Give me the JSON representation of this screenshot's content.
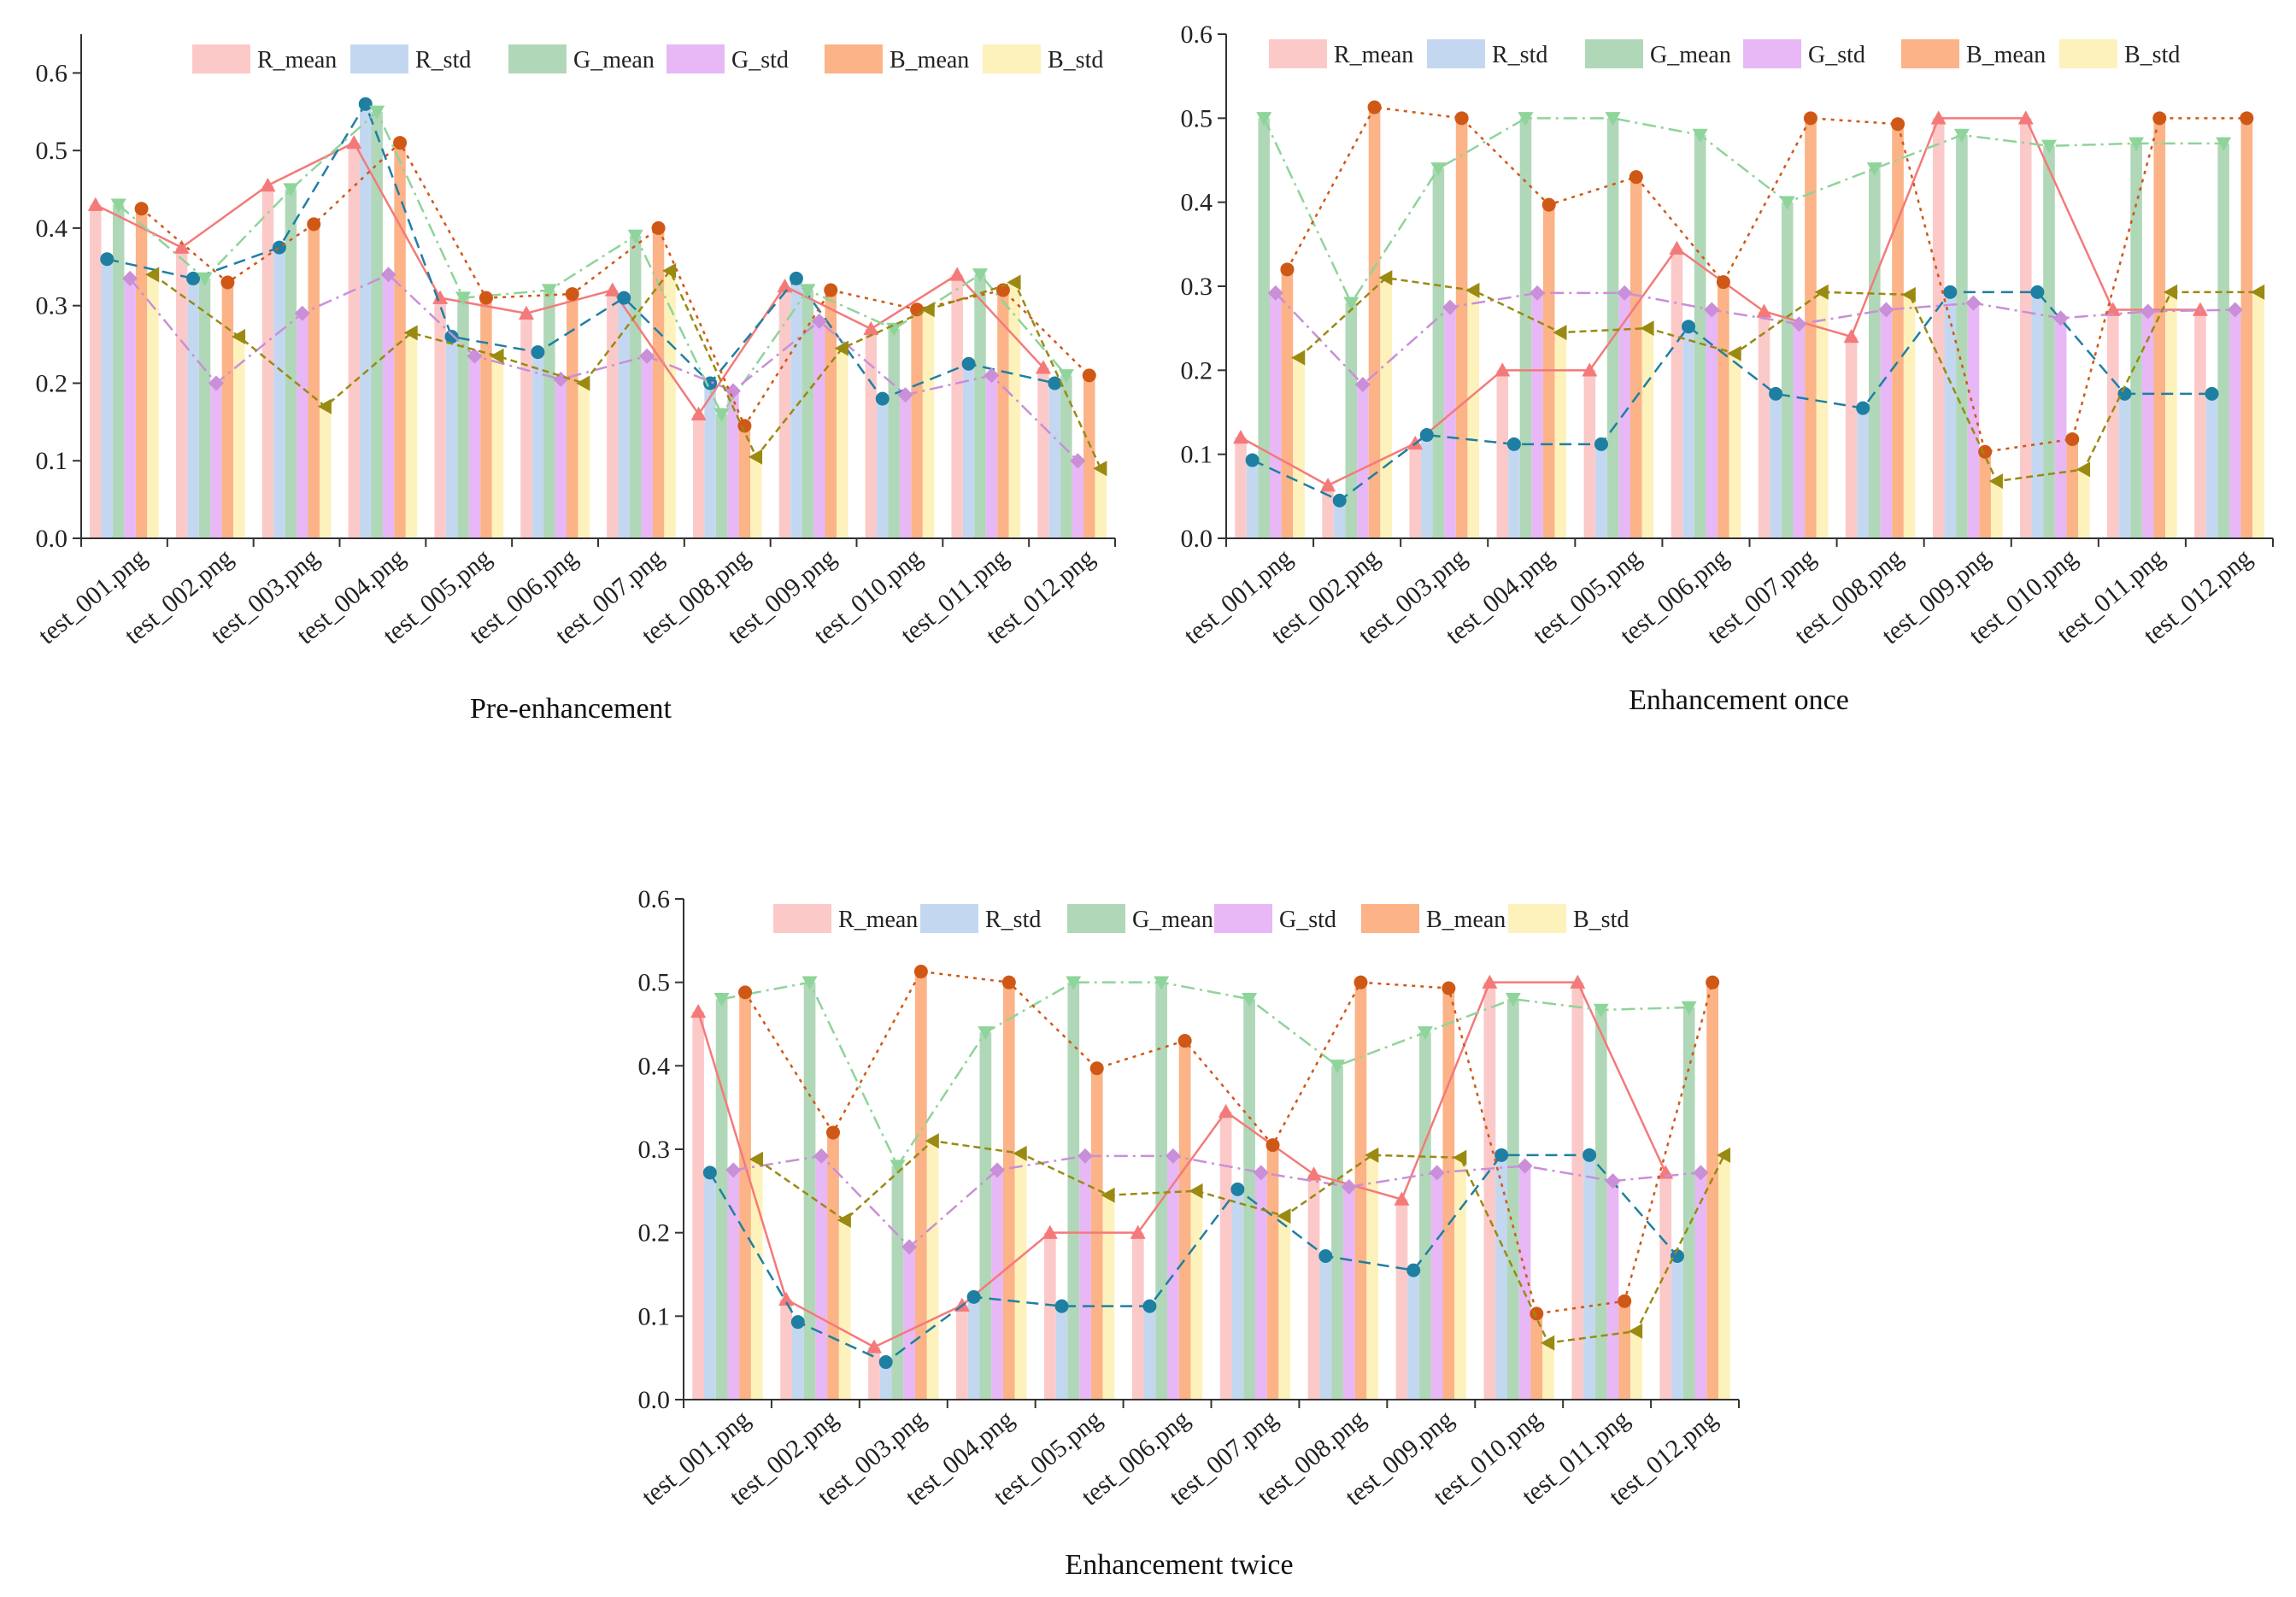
{
  "colors": {
    "R_mean": "#fcc9c9",
    "R_std": "#c3d8f0",
    "G_mean": "#b0d8b8",
    "G_std": "#e7b8f5",
    "B_mean": "#fbb387",
    "B_std": "#fdf2bb",
    "R_mean_line": "#f47a7a",
    "R_std_line": "#1f7fa3",
    "G_mean_line": "#8fd49a",
    "G_std_line": "#c98fd8",
    "B_mean_line": "#d05816",
    "B_std_line": "#9a8a12"
  },
  "chart_data": [
    {
      "type": "bar",
      "title": "Pre-enhancement",
      "categories": [
        "test_001.png",
        "test_002.png",
        "test_003.png",
        "test_004.png",
        "test_005.png",
        "test_006.png",
        "test_007.png",
        "test_008.png",
        "test_009.png",
        "test_010.png",
        "test_011.png",
        "test_012.png"
      ],
      "ylim": [
        0,
        0.65
      ],
      "yticks": [
        0.0,
        0.1,
        0.2,
        0.3,
        0.4,
        0.5,
        0.6
      ],
      "legend_position": "top",
      "series": [
        {
          "name": "R_mean",
          "values": [
            0.43,
            0.375,
            0.455,
            0.51,
            0.31,
            0.29,
            0.32,
            0.16,
            0.325,
            0.27,
            0.34,
            0.22
          ]
        },
        {
          "name": "R_std",
          "values": [
            0.36,
            0.335,
            0.375,
            0.56,
            0.26,
            0.24,
            0.31,
            0.2,
            0.335,
            0.18,
            0.225,
            0.2
          ]
        },
        {
          "name": "G_mean",
          "values": [
            0.43,
            0.335,
            0.45,
            0.55,
            0.31,
            0.32,
            0.39,
            0.16,
            0.32,
            0.27,
            0.34,
            0.21
          ]
        },
        {
          "name": "G_std",
          "values": [
            0.335,
            0.2,
            0.29,
            0.34,
            0.235,
            0.205,
            0.235,
            0.19,
            0.28,
            0.185,
            0.21,
            0.1
          ]
        },
        {
          "name": "B_mean",
          "values": [
            0.425,
            0.33,
            0.405,
            0.51,
            0.31,
            0.315,
            0.4,
            0.145,
            0.32,
            0.295,
            0.32,
            0.21
          ]
        },
        {
          "name": "B_std",
          "values": [
            0.34,
            0.26,
            0.17,
            0.265,
            0.235,
            0.2,
            0.345,
            0.105,
            0.245,
            0.295,
            0.33,
            0.09
          ]
        }
      ]
    },
    {
      "type": "bar",
      "title": "Enhancement once",
      "categories": [
        "test_001.png",
        "test_002.png",
        "test_003.png",
        "test_004.png",
        "test_005.png",
        "test_006.png",
        "test_007.png",
        "test_008.png",
        "test_009.png",
        "test_010.png",
        "test_011.png",
        "test_012.png"
      ],
      "ylim": [
        0,
        0.6
      ],
      "yticks": [
        0.0,
        0.1,
        0.2,
        0.3,
        0.4,
        0.5,
        0.6
      ],
      "legend_position": "top",
      "series": [
        {
          "name": "R_mean",
          "values": [
            0.12,
            0.063,
            0.113,
            0.2,
            0.2,
            0.345,
            0.27,
            0.24,
            0.5,
            0.5,
            0.272,
            0.272
          ]
        },
        {
          "name": "R_std",
          "values": [
            0.093,
            0.045,
            0.123,
            0.112,
            0.112,
            0.252,
            0.172,
            0.155,
            0.293,
            0.293,
            0.172,
            0.172
          ]
        },
        {
          "name": "G_mean",
          "values": [
            0.5,
            0.28,
            0.44,
            0.5,
            0.5,
            0.48,
            0.4,
            0.44,
            0.48,
            0.467,
            0.47,
            0.47
          ]
        },
        {
          "name": "G_std",
          "values": [
            0.292,
            0.183,
            0.275,
            0.292,
            0.292,
            0.272,
            0.255,
            0.272,
            0.28,
            0.262,
            0.27,
            0.272
          ]
        },
        {
          "name": "B_mean",
          "values": [
            0.32,
            0.513,
            0.5,
            0.397,
            0.43,
            0.305,
            0.5,
            0.493,
            0.103,
            0.118,
            0.5,
            0.5
          ]
        },
        {
          "name": "B_std",
          "values": [
            0.215,
            0.31,
            0.295,
            0.245,
            0.25,
            0.22,
            0.293,
            0.29,
            0.068,
            0.082,
            0.293,
            0.293
          ]
        }
      ]
    },
    {
      "type": "bar",
      "title": "Enhancement twice",
      "categories": [
        "test_001.png",
        "test_002.png",
        "test_003.png",
        "test_004.png",
        "test_005.png",
        "test_006.png",
        "test_007.png",
        "test_008.png",
        "test_009.png",
        "test_010.png",
        "test_011.png",
        "test_012.png"
      ],
      "ylim": [
        0,
        0.6
      ],
      "yticks": [
        0.0,
        0.1,
        0.2,
        0.3,
        0.4,
        0.5,
        0.6
      ],
      "legend_position": "top",
      "series": [
        {
          "name": "R_mean",
          "values": [
            0.465,
            0.12,
            0.063,
            0.113,
            0.2,
            0.2,
            0.345,
            0.27,
            0.24,
            0.5,
            0.5,
            0.272
          ]
        },
        {
          "name": "R_std",
          "values": [
            0.272,
            0.093,
            0.045,
            0.123,
            0.112,
            0.112,
            0.252,
            0.172,
            0.155,
            0.293,
            0.293,
            0.172
          ]
        },
        {
          "name": "G_mean",
          "values": [
            0.48,
            0.5,
            0.28,
            0.44,
            0.5,
            0.5,
            0.48,
            0.4,
            0.44,
            0.48,
            0.467,
            0.47
          ]
        },
        {
          "name": "G_std",
          "values": [
            0.275,
            0.292,
            0.183,
            0.275,
            0.292,
            0.292,
            0.272,
            0.255,
            0.272,
            0.28,
            0.262,
            0.272
          ]
        },
        {
          "name": "B_mean",
          "values": [
            0.488,
            0.32,
            0.513,
            0.5,
            0.397,
            0.43,
            0.305,
            0.5,
            0.493,
            0.103,
            0.118,
            0.5
          ]
        },
        {
          "name": "B_std",
          "values": [
            0.288,
            0.215,
            0.31,
            0.295,
            0.245,
            0.25,
            0.22,
            0.293,
            0.29,
            0.068,
            0.082,
            0.293
          ]
        }
      ]
    }
  ]
}
